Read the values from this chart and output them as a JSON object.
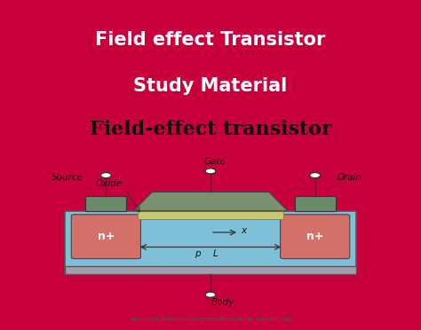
{
  "title_line1": "Field effect Transistor",
  "title_line2": "Study Material",
  "title_bg_color": "#C8003C",
  "title_text_color": "#FFFFFF",
  "white_bg_color": "#F8F4EE",
  "subtitle": "Field-effect transistor",
  "url": "https://en.wikipedia.org/wiki/File:Lateral_mosfet.svg",
  "body_color": "#7DC0D8",
  "body_border_color": "#555555",
  "nplus_color": "#D4706A",
  "oxide_color": "#C8C870",
  "gate_metal_color": "#7A9070",
  "contact_color": "#6A8A6A",
  "bottom_strip_color": "#A0A0B0",
  "label_color": "#111111",
  "wire_color": "#333333"
}
